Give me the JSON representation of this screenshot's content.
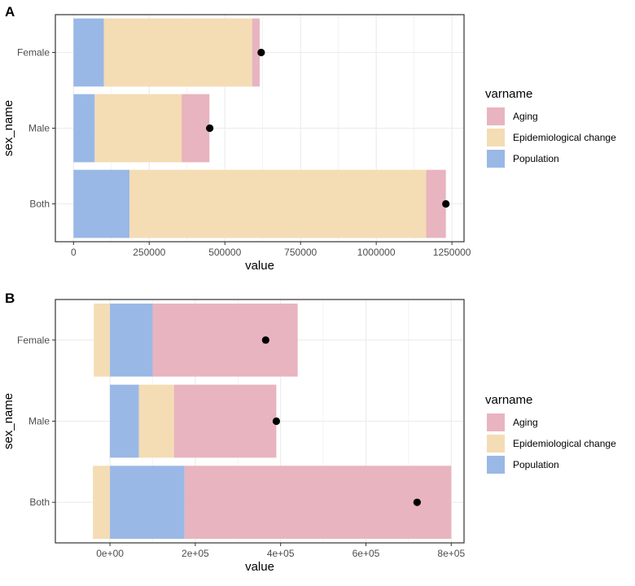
{
  "colors": {
    "aging": "#e8b4bf",
    "epi": "#f4dcb4",
    "population": "#9ab8e6",
    "grid": "#ebebeb",
    "point": "#000000",
    "axis_text": "#4d4d4d",
    "panel_border": "#333333"
  },
  "chart_data": [
    {
      "panel": "A",
      "type": "bar",
      "orientation": "horizontal",
      "stacked": true,
      "xlabel": "value",
      "ylabel": "sex_name",
      "categories": [
        "Both",
        "Male",
        "Female"
      ],
      "xlim": [
        -60000,
        1290000
      ],
      "xticks": [
        0,
        250000,
        500000,
        750000,
        1000000,
        1250000
      ],
      "xtick_labels": [
        "0",
        "250000",
        "500000",
        "750000",
        "1000000",
        "1250000"
      ],
      "series": [
        {
          "name": "Population",
          "key": "population",
          "values": [
            185000,
            70000,
            100000
          ]
        },
        {
          "name": "Epidemiological change",
          "key": "epi",
          "values": [
            980000,
            287000,
            490000
          ]
        },
        {
          "name": "Aging",
          "key": "aging",
          "values": [
            65000,
            92000,
            25000
          ]
        }
      ],
      "points": [
        1230000,
        450000,
        620000
      ],
      "legend": {
        "title": "varname",
        "entries": [
          {
            "label": "Aging",
            "key": "aging"
          },
          {
            "label": "Epidemiological change",
            "key": "epi"
          },
          {
            "label": "Population",
            "key": "population"
          }
        ]
      }
    },
    {
      "panel": "B",
      "type": "bar",
      "orientation": "horizontal",
      "stacked": true,
      "xlabel": "value",
      "ylabel": "sex_name",
      "categories": [
        "Both",
        "Male",
        "Female"
      ],
      "xlim": [
        -128000,
        830000
      ],
      "xticks": [
        0,
        200000,
        400000,
        600000,
        800000
      ],
      "xtick_labels": [
        "0e+00",
        "2e+05",
        "4e+05",
        "6e+05",
        "8e+05"
      ],
      "segments": [
        [
          {
            "key": "epi",
            "from": -40000,
            "to": 0
          },
          {
            "key": "population",
            "from": 0,
            "to": 175000
          },
          {
            "key": "aging",
            "from": 175000,
            "to": 800000
          }
        ],
        [
          {
            "key": "population",
            "from": 0,
            "to": 68000
          },
          {
            "key": "epi",
            "from": 68000,
            "to": 150000
          },
          {
            "key": "aging",
            "from": 150000,
            "to": 390000
          }
        ],
        [
          {
            "key": "epi",
            "from": -38000,
            "to": 0
          },
          {
            "key": "population",
            "from": 0,
            "to": 100000
          },
          {
            "key": "aging",
            "from": 100000,
            "to": 440000
          }
        ]
      ],
      "points": [
        720000,
        390000,
        365000
      ],
      "legend": {
        "title": "varname",
        "entries": [
          {
            "label": "Aging",
            "key": "aging"
          },
          {
            "label": "Epidemiological change",
            "key": "epi"
          },
          {
            "label": "Population",
            "key": "population"
          }
        ]
      }
    }
  ]
}
